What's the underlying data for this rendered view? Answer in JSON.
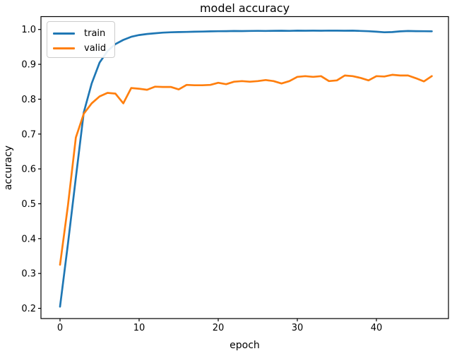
{
  "figure": {
    "title": "model accuracy",
    "xlabel": "epoch",
    "ylabel": "accuracy"
  },
  "chart_data": {
    "type": "line",
    "title": "model accuracy",
    "xlabel": "epoch",
    "ylabel": "accuracy",
    "grid": false,
    "legend_position": "upper left",
    "axis_color": "#000000",
    "text_color": "#000000",
    "xlim": [
      -2.41,
      49.11
    ],
    "ylim": [
      0.1707,
      1.0369
    ],
    "xticks": [
      0,
      10,
      20,
      30,
      40
    ],
    "yticks": [
      0.2,
      0.3,
      0.4,
      0.5,
      0.6,
      0.7,
      0.8,
      0.9,
      1.0
    ],
    "x": [
      0,
      1,
      2,
      3,
      4,
      5,
      6,
      7,
      8,
      9,
      10,
      11,
      12,
      13,
      14,
      15,
      16,
      17,
      18,
      19,
      20,
      21,
      22,
      23,
      24,
      25,
      26,
      27,
      28,
      29,
      30,
      31,
      32,
      33,
      34,
      35,
      36,
      37,
      38,
      39,
      40,
      41,
      42,
      43,
      44,
      45,
      46,
      47
    ],
    "series": [
      {
        "name": "train",
        "color": "#1f77b4",
        "values": [
          0.205,
          0.385,
          0.575,
          0.762,
          0.845,
          0.905,
          0.938,
          0.958,
          0.97,
          0.979,
          0.984,
          0.987,
          0.989,
          0.991,
          0.992,
          0.9925,
          0.993,
          0.9935,
          0.994,
          0.9945,
          0.995,
          0.9952,
          0.9955,
          0.9953,
          0.9958,
          0.996,
          0.9958,
          0.9962,
          0.9963,
          0.996,
          0.9965,
          0.9963,
          0.9966,
          0.9964,
          0.9967,
          0.9965,
          0.9963,
          0.9966,
          0.9958,
          0.995,
          0.9935,
          0.992,
          0.9925,
          0.9945,
          0.9955,
          0.9952,
          0.995,
          0.9948
        ]
      },
      {
        "name": "valid",
        "color": "#ff7f0e",
        "values": [
          0.325,
          0.495,
          0.69,
          0.758,
          0.788,
          0.808,
          0.818,
          0.816,
          0.788,
          0.832,
          0.83,
          0.827,
          0.836,
          0.835,
          0.835,
          0.828,
          0.841,
          0.84,
          0.84,
          0.841,
          0.847,
          0.843,
          0.85,
          0.852,
          0.85,
          0.852,
          0.855,
          0.852,
          0.845,
          0.852,
          0.864,
          0.866,
          0.864,
          0.866,
          0.852,
          0.854,
          0.868,
          0.866,
          0.861,
          0.854,
          0.866,
          0.865,
          0.87,
          0.868,
          0.868,
          0.86,
          0.851,
          0.866
        ]
      }
    ]
  }
}
